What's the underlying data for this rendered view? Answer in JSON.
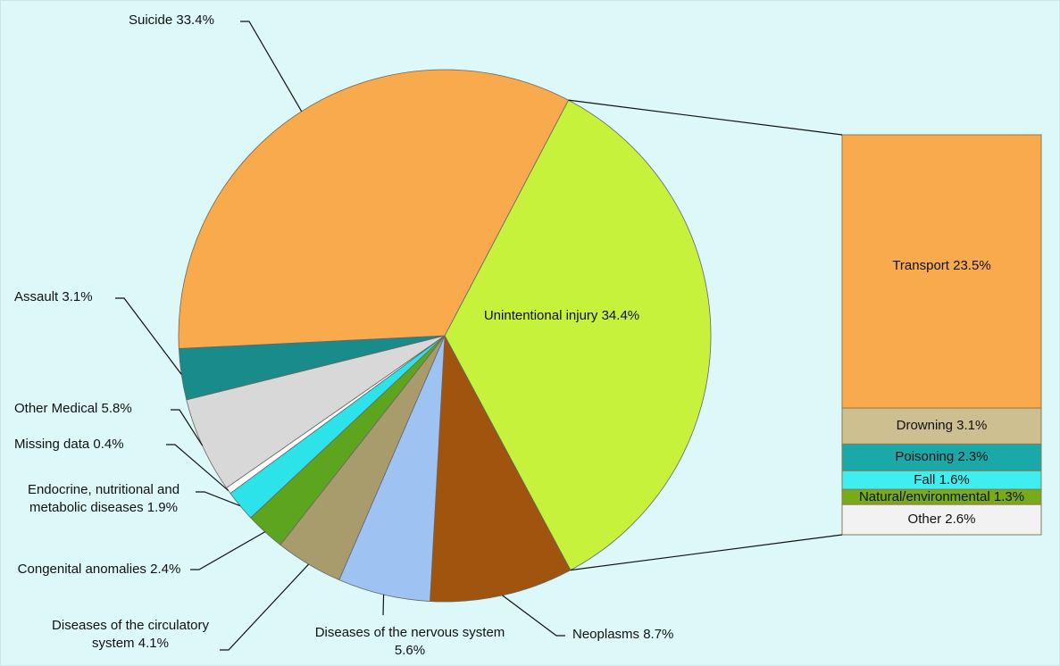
{
  "chart_data": {
    "type": "pie",
    "pie": {
      "categories": [
        "Unintentional injury",
        "Neoplasms",
        "Diseases of the nervous system",
        "Diseases of the circulatory system",
        "Congenital anomalies",
        "Endocrine, nutritional and metabolic diseases",
        "Missing data",
        "Other Medical",
        "Assault",
        "Suicide"
      ],
      "values": [
        34.4,
        8.7,
        5.6,
        4.1,
        2.4,
        1.9,
        0.4,
        5.8,
        3.1,
        33.4
      ],
      "value_labels": [
        "34.4%",
        "8.7%",
        "5.6%",
        "4.1%",
        "2.4%",
        "1.9%",
        "0.4%",
        "5.8%",
        "3.1%",
        "33.4%"
      ],
      "colors": [
        "#c6f23c",
        "#a0540e",
        "#9ec3f2",
        "#a89b6c",
        "#5ea51f",
        "#2de3ea",
        "#ffffff",
        "#d8d8d8",
        "#1a8b8b",
        "#f9aa4d"
      ]
    },
    "bar": {
      "categories": [
        "Transport",
        "Drowning",
        "Poisoning",
        "Fall",
        "Natural/environmental",
        "Other"
      ],
      "values": [
        23.5,
        3.1,
        2.3,
        1.6,
        1.3,
        2.6
      ],
      "value_labels": [
        "23.5%",
        "3.1%",
        "2.3%",
        "1.6%",
        "1.3%",
        "2.6%"
      ],
      "colors": [
        "#f9aa4d",
        "#cdbf90",
        "#1aa8a8",
        "#40eef0",
        "#78aa1c",
        "#f2f2f2"
      ]
    }
  }
}
